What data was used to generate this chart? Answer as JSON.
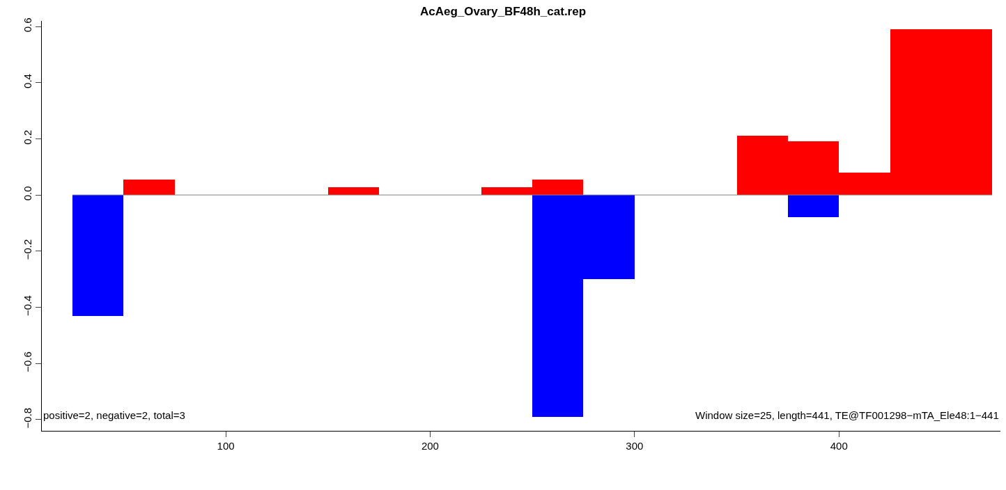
{
  "chart_data": {
    "type": "bar",
    "title": "AcAeg_Ovary_BF48h_cat.rep",
    "x": [
      37.5,
      62.5,
      87.5,
      112.5,
      137.5,
      162.5,
      187.5,
      212.5,
      237.5,
      262.5,
      287.5,
      312.5,
      337.5,
      362.5,
      387.5,
      412.5,
      437.5,
      462.5
    ],
    "series": [
      {
        "color": "#ff0000",
        "values": [
          0,
          0.055,
          0,
          0,
          0,
          0.028,
          0,
          0,
          0.028,
          0.056,
          0,
          0,
          0,
          0.21,
          0.19,
          0.08,
          0.59,
          0.59
        ]
      },
      {
        "color": "#0000ff",
        "values": [
          -0.43,
          0,
          0,
          0,
          0,
          0,
          0,
          0,
          0,
          -0.79,
          -0.3,
          0,
          0,
          0,
          -0.08,
          0,
          0,
          0
        ]
      }
    ],
    "xlim": [
      10,
      479
    ],
    "xticks": [
      100,
      200,
      300,
      400
    ],
    "ylim": [
      -0.84,
      0.62
    ],
    "yticks": [
      {
        "value": -0.8,
        "label": "−0.8"
      },
      {
        "value": -0.6,
        "label": "−0.6"
      },
      {
        "value": -0.4,
        "label": "−0.4"
      },
      {
        "value": -0.2,
        "label": "−0.2"
      },
      {
        "value": 0,
        "label": "0.0"
      },
      {
        "value": 0.2,
        "label": "0.2"
      },
      {
        "value": 0.4,
        "label": "0.4"
      },
      {
        "value": 0.6,
        "label": "0.6"
      }
    ],
    "ref_lines": [
      {
        "axis": "y",
        "value": 0,
        "color": "#808080"
      }
    ],
    "annotations": [
      "positive=2, negative=2, total=3",
      "Window size=25, length=441, TE@TF001298−mTA_Ele48:1−441"
    ]
  }
}
